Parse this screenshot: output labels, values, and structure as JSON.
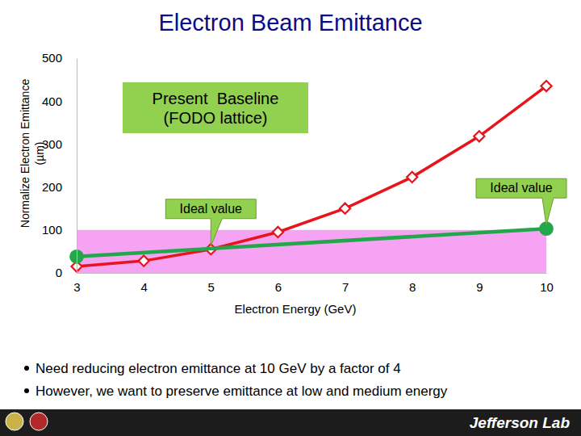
{
  "chart_data": {
    "type": "line",
    "title": "Electron Beam Emittance",
    "xlabel": "Electron Energy (GeV)",
    "ylabel": "Normalize Electron Emittance (µm)",
    "xlim": [
      3,
      10
    ],
    "xticks": [
      3,
      4,
      5,
      6,
      7,
      8,
      9,
      10
    ],
    "ylim": [
      0,
      500
    ],
    "yticks": [
      0,
      100,
      200,
      300,
      400,
      500
    ],
    "grid": false,
    "legend": "top",
    "bands": [
      {
        "ylim": [
          0,
          100
        ],
        "color": "#f7a3f3"
      }
    ],
    "series": [
      {
        "name": "Present  Baseline (FODO lattice)",
        "color": "#e8141b",
        "marker": "diamond",
        "x": [
          3,
          4,
          5,
          6,
          7,
          8,
          9,
          10
        ],
        "values": [
          15,
          28,
          55,
          95,
          150,
          223,
          318,
          435
        ]
      },
      {
        "color": "#22a84a",
        "marker": "circle",
        "x": [
          3,
          10
        ],
        "values": [
          38,
          103
        ]
      }
    ],
    "annotations": [
      {
        "text": "Ideal value",
        "x": 5,
        "y": 55
      },
      {
        "text": "Ideal value",
        "x": 10,
        "y": 103
      }
    ],
    "bullets": [
      "Need reducing electron emittance at 10 GeV by a factor of 4",
      "However, we want to preserve emittance at low and medium energy"
    ],
    "footer": "Jefferson Lab"
  }
}
